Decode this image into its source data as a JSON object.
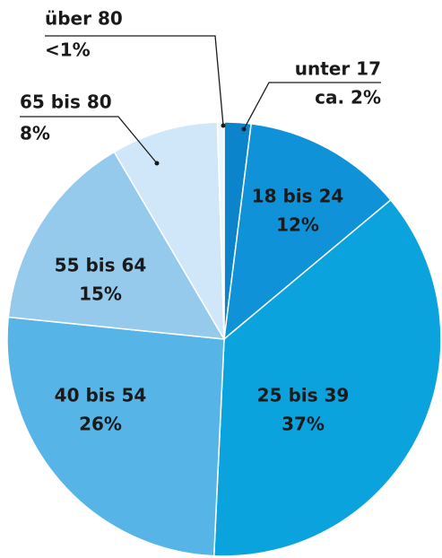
{
  "chart_data": {
    "type": "pie",
    "categories": [
      "unter 17",
      "18 bis 24",
      "25 bis 39",
      "40 bis 54",
      "55 bis 64",
      "65 bis 80",
      "über 80"
    ],
    "values": [
      2,
      12,
      37,
      26,
      15,
      8,
      0.5
    ],
    "value_labels": [
      "ca. 2%",
      "12%",
      "37%",
      "26%",
      "15%",
      "8%",
      "<1%"
    ],
    "colors": [
      "#0b84cc",
      "#0f92d8",
      "#0ba3de",
      "#56b4e7",
      "#96caed",
      "#cfe7f8",
      "#eef7fd"
    ]
  }
}
